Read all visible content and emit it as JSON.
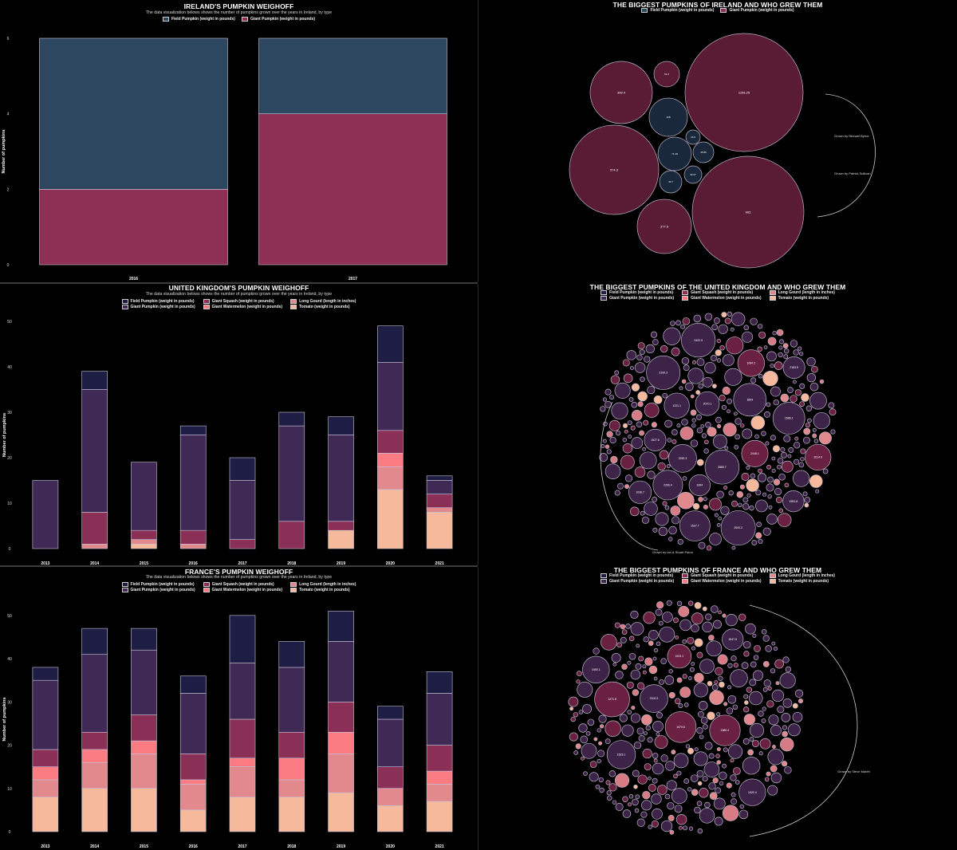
{
  "colors": {
    "field": "#2e4761",
    "giant": "#3f2a55",
    "giant_ie": "#8e2f55",
    "squash": "#8a2f56",
    "watermelon": "#fb7b82",
    "gourd": "#e2898e",
    "tomato": "#f6b99b",
    "field_uk": "#1e1e45",
    "bubble_giant": "#3c2347",
    "bubble_ie_giant": "#5a1c35",
    "bubble_field": "#19283a"
  },
  "legend_labels": {
    "field": "Field Pumpkin (weight in pounds)",
    "giant": "Giant Pumpkin (weight in pounds)",
    "squash": "Giant Squash (weight in pounds)",
    "watermelon": "Giant Watermelon (weight in pounds)",
    "gourd": "Long Gourd (length in inches)",
    "tomato": "Tomato (weight in pounds)"
  },
  "ireland": {
    "title": "IRELAND'S PUMPKIN WEIGHOFF",
    "subtitle": "The data visualization belows shows the number of pumpkins grown over the years in Ireland, by type"
  },
  "uk": {
    "title": "UNITED KINGDOM'S PUMPKIN WEIGHOFF",
    "subtitle": "The data visualization belows shows the number of pumpkins grown over the years in Ireland, by type"
  },
  "france": {
    "title": "FRANCE'S PUMPKIN WEIGHOFF",
    "subtitle": "The data visualization belows shows the number of pumpkins grown over the years in Ireland, by type"
  },
  "bubble_ie": {
    "title": "THE BIGGEST PUMPKINS OF IRELAND AND WHO GREW THEM",
    "grower1": "Grown by Michael Byrne",
    "grower2": "Grown by Patrick Sullivan"
  },
  "bubble_uk": {
    "title": "THE BIGGEST PUMPKINS OF THE UNITED KINGDOM AND WHO GREW THEM",
    "grower": "Grown by Ian & Stuart Paton"
  },
  "bubble_fr": {
    "title": "THE BIGGEST PUMPKINS OF FRANCE AND WHO GREW THEM",
    "grower": "Grown by Steve Marlet"
  },
  "chart_data": [
    {
      "type": "bar",
      "title": "IRELAND'S PUMPKIN WEIGHOFF",
      "ylabel": "Number of pumpkins",
      "categories": [
        "2016",
        "2017"
      ],
      "yticks": [
        0,
        2,
        4,
        6
      ],
      "ylim": [
        0,
        6
      ],
      "series": [
        {
          "name": "Giant Pumpkin (weight in pounds)",
          "key": "giant_ie",
          "values": [
            2,
            4
          ]
        },
        {
          "name": "Field Pumpkin (weight in pounds)",
          "key": "field",
          "values": [
            4,
            2
          ]
        }
      ]
    },
    {
      "type": "bar",
      "title": "UNITED KINGDOM'S PUMPKIN WEIGHOFF",
      "ylabel": "Number of pumpkins",
      "categories": [
        "2013",
        "2014",
        "2015",
        "2016",
        "2017",
        "2018",
        "2019",
        "2020",
        "2021"
      ],
      "yticks": [
        0,
        10,
        20,
        30,
        40,
        50
      ],
      "ylim": [
        0,
        50
      ],
      "series": [
        {
          "name": "Tomato (weight in pounds)",
          "key": "tomato",
          "values": [
            0,
            0,
            1,
            0,
            0,
            0,
            4,
            13,
            8
          ]
        },
        {
          "name": "Long Gourd (length in inches)",
          "key": "gourd",
          "values": [
            0,
            1,
            1,
            1,
            0,
            0,
            0,
            5,
            1
          ]
        },
        {
          "name": "Giant Watermelon (weight in pounds)",
          "key": "watermelon",
          "values": [
            0,
            0,
            0,
            0,
            0,
            0,
            0,
            3,
            0
          ]
        },
        {
          "name": "Giant Squash (weight in pounds)",
          "key": "squash",
          "values": [
            0,
            7,
            2,
            3,
            2,
            6,
            2,
            5,
            3
          ]
        },
        {
          "name": "Giant Pumpkin (weight in pounds)",
          "key": "giant",
          "values": [
            15,
            27,
            15,
            21,
            13,
            21,
            19,
            15,
            3
          ]
        },
        {
          "name": "Field Pumpkin (weight in pounds)",
          "key": "field_uk",
          "values": [
            0,
            4,
            0,
            2,
            5,
            3,
            4,
            8,
            1
          ]
        }
      ]
    },
    {
      "type": "bar",
      "title": "FRANCE'S PUMPKIN WEIGHOFF",
      "ylabel": "Number of pumpkins",
      "categories": [
        "2013",
        "2014",
        "2015",
        "2016",
        "2017",
        "2018",
        "2019",
        "2020",
        "2021"
      ],
      "yticks": [
        0,
        10,
        20,
        30,
        40,
        50
      ],
      "ylim": [
        0,
        52
      ],
      "series": [
        {
          "name": "Tomato (weight in pounds)",
          "key": "tomato",
          "values": [
            8,
            10,
            10,
            5,
            8,
            8,
            9,
            6,
            7
          ]
        },
        {
          "name": "Long Gourd (length in inches)",
          "key": "gourd",
          "values": [
            4,
            6,
            8,
            6,
            7,
            4,
            9,
            4,
            4
          ]
        },
        {
          "name": "Giant Watermelon (weight in pounds)",
          "key": "watermelon",
          "values": [
            3,
            3,
            3,
            1,
            2,
            5,
            5,
            0,
            3
          ]
        },
        {
          "name": "Giant Squash (weight in pounds)",
          "key": "squash",
          "values": [
            4,
            4,
            6,
            6,
            9,
            6,
            7,
            5,
            6
          ]
        },
        {
          "name": "Giant Pumpkin (weight in pounds)",
          "key": "giant",
          "values": [
            16,
            18,
            15,
            14,
            13,
            15,
            14,
            11,
            12
          ]
        },
        {
          "name": "Field Pumpkin (weight in pounds)",
          "key": "field_uk",
          "values": [
            3,
            6,
            5,
            4,
            11,
            6,
            7,
            3,
            5
          ]
        }
      ]
    },
    {
      "type": "bubble",
      "title": "THE BIGGEST PUMPKINS OF IRELAND AND WHO GREW THEM",
      "bubbles": [
        {
          "label": "1108.25",
          "type": "giant_ie"
        },
        {
          "label": "993",
          "type": "giant_ie"
        },
        {
          "label": "574.3",
          "type": "giant_ie"
        },
        {
          "label": "399.4",
          "type": "giant_ie"
        },
        {
          "label": "377.5",
          "type": "giant_ie"
        },
        {
          "label": "91.6",
          "type": "giant_ie"
        },
        {
          "label": "108",
          "type": "field"
        },
        {
          "label": "71.38",
          "type": "field"
        },
        {
          "label": "45.86",
          "type": "field"
        },
        {
          "label": "33.27",
          "type": "field"
        },
        {
          "label": "30.7",
          "type": "field"
        },
        {
          "label": "16.6",
          "type": "field"
        }
      ]
    },
    {
      "type": "bubble",
      "title": "THE BIGGEST PUMPKINS OF THE UNITED KINGDOM AND WHO GREW THEM",
      "labeled": [
        "2183.5",
        "1036.7",
        "2266.4",
        "2880.7",
        "2252.3",
        "1994",
        "1804",
        "2448.1",
        "2614.9",
        "2100.3",
        "2070.1",
        "2422.9",
        "2000.2",
        "1084.2",
        "1551.8",
        "1686.1",
        "1527.7",
        "1221.1",
        "1527.6"
      ]
    },
    {
      "type": "bubble",
      "title": "THE BIGGEST PUMPKINS OF FRANCE AND WHO GREW THEM",
      "labeled": [
        "1579.6",
        "1920.4",
        "1623.1",
        "2100.3",
        "1880.2",
        "1271.5",
        "1850.1",
        "1547.5",
        "1923.1"
      ]
    }
  ]
}
